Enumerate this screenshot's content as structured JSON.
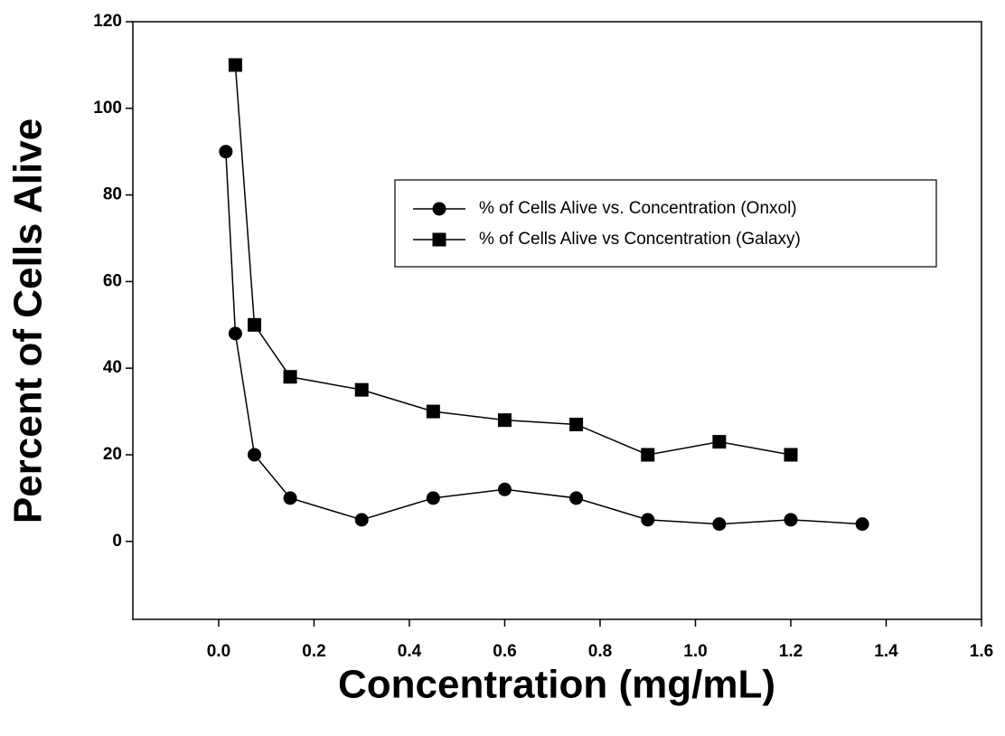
{
  "chart_data": {
    "type": "line",
    "xlabel": "Concentration (mg/mL)",
    "ylabel": "Percent of Cells Alive",
    "xlim": [
      -0.18,
      1.6
    ],
    "ylim": [
      -18,
      120
    ],
    "xticks": [
      {
        "value": 0,
        "label": "0.0"
      },
      0.2,
      0.4,
      0.6,
      0.8,
      {
        "value": 1,
        "label": "1.0"
      },
      1.2,
      1.4,
      1.6
    ],
    "yticks": [
      0,
      20,
      40,
      60,
      80,
      100,
      120
    ],
    "legend": "upper right",
    "series": [
      {
        "name": "% of Cells Alive vs. Concentration (Onxol)",
        "color": "#000000",
        "marker": "circle",
        "x": [
          0.015,
          0.035,
          0.075,
          0.15,
          0.3,
          0.45,
          0.6,
          0.75,
          0.9,
          1.05,
          1.2,
          1.35
        ],
        "values": [
          90,
          48,
          20,
          10,
          5,
          10,
          12,
          10,
          5,
          4,
          5,
          4
        ]
      },
      {
        "name": "% of Cells Alive vs Concentration (Galaxy)",
        "color": "#000000",
        "marker": "square",
        "x": [
          0.035,
          0.075,
          0.15,
          0.3,
          0.45,
          0.6,
          0.75,
          0.9,
          1.05,
          1.2
        ],
        "values": [
          110,
          50,
          38,
          35,
          30,
          28,
          27,
          20,
          23,
          20
        ]
      }
    ]
  }
}
